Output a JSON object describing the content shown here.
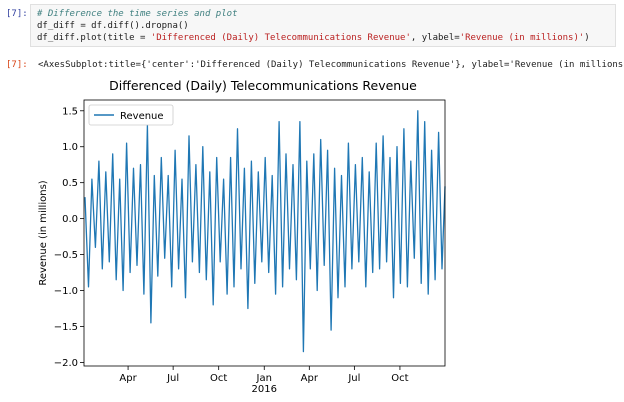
{
  "notebook": {
    "in_prompt": "[7]:",
    "out_prompt": "[7]:",
    "code_lines": [
      {
        "parts": [
          {
            "cls": "comment",
            "text": "# Difference the time series and plot"
          }
        ]
      },
      {
        "parts": [
          {
            "cls": "",
            "text": "df_diff = df.diff().dropna()"
          }
        ]
      },
      {
        "parts": [
          {
            "cls": "",
            "text": "df_diff.plot(title = "
          },
          {
            "cls": "str",
            "text": "'Differenced (Daily) Telecommunications Revenue'"
          },
          {
            "cls": "",
            "text": ", ylabel="
          },
          {
            "cls": "str",
            "text": "'Revenue (in millions)'"
          },
          {
            "cls": "",
            "text": ")"
          }
        ]
      }
    ],
    "output_text": "<AxesSubplot:title={'center':'Differenced (Daily) Telecommunications Revenue'}, ylabel='Revenue (in millions)'>"
  },
  "chart_data": {
    "type": "line",
    "title": "Differenced (Daily) Telecommunications Revenue",
    "xlabel": "",
    "ylabel": "Revenue (in millions)",
    "ylim": [
      -2.05,
      1.65
    ],
    "yticks": [
      1.5,
      1.0,
      0.5,
      0.0,
      -0.5,
      -1.0,
      -1.5,
      -2.0
    ],
    "ytick_labels": [
      "1.5",
      "1.0",
      "0.5",
      "0.0",
      "−0.5",
      "−1.0",
      "−1.5",
      "−2.0"
    ],
    "xlim": [
      "2015-01-02",
      "2016-12-31"
    ],
    "xticks": [
      {
        "date": "2015-04-01",
        "label": "Apr"
      },
      {
        "date": "2015-07-01",
        "label": "Jul"
      },
      {
        "date": "2015-10-01",
        "label": "Oct"
      },
      {
        "date": "2016-01-01",
        "label": "Jan"
      },
      {
        "date": "2016-04-01",
        "label": "Apr"
      },
      {
        "date": "2016-07-01",
        "label": "Jul"
      },
      {
        "date": "2016-10-01",
        "label": "Oct"
      }
    ],
    "year_label": "2016",
    "legend": {
      "position": "top-left",
      "entries": [
        "Revenue"
      ]
    },
    "grid": false,
    "series_color": "#1f77b4",
    "series": [
      {
        "name": "Revenue",
        "points": [
          [
            "2015-01-04",
            0.3
          ],
          [
            "2015-01-11",
            -0.95
          ],
          [
            "2015-01-18",
            0.55
          ],
          [
            "2015-01-25",
            -0.4
          ],
          [
            "2015-02-01",
            0.8
          ],
          [
            "2015-02-08",
            -0.7
          ],
          [
            "2015-02-15",
            0.65
          ],
          [
            "2015-02-22",
            -0.6
          ],
          [
            "2015-03-01",
            0.9
          ],
          [
            "2015-03-08",
            -0.85
          ],
          [
            "2015-03-15",
            0.55
          ],
          [
            "2015-03-22",
            -1.0
          ],
          [
            "2015-03-29",
            1.05
          ],
          [
            "2015-04-05",
            -0.75
          ],
          [
            "2015-04-12",
            0.7
          ],
          [
            "2015-04-19",
            -0.65
          ],
          [
            "2015-04-26",
            0.75
          ],
          [
            "2015-05-03",
            -1.05
          ],
          [
            "2015-05-10",
            1.3
          ],
          [
            "2015-05-17",
            -1.45
          ],
          [
            "2015-05-24",
            0.6
          ],
          [
            "2015-05-31",
            -0.8
          ],
          [
            "2015-06-07",
            0.85
          ],
          [
            "2015-06-14",
            -0.55
          ],
          [
            "2015-06-21",
            0.6
          ],
          [
            "2015-06-28",
            -0.95
          ],
          [
            "2015-07-05",
            0.95
          ],
          [
            "2015-07-12",
            -0.7
          ],
          [
            "2015-07-19",
            0.55
          ],
          [
            "2015-07-26",
            -1.1
          ],
          [
            "2015-08-02",
            1.15
          ],
          [
            "2015-08-09",
            -0.6
          ],
          [
            "2015-08-16",
            0.75
          ],
          [
            "2015-08-23",
            -0.75
          ],
          [
            "2015-08-30",
            1.0
          ],
          [
            "2015-09-06",
            -0.85
          ],
          [
            "2015-09-13",
            0.65
          ],
          [
            "2015-09-20",
            -1.2
          ],
          [
            "2015-09-27",
            0.85
          ],
          [
            "2015-10-04",
            -0.6
          ],
          [
            "2015-10-11",
            0.55
          ],
          [
            "2015-10-18",
            -1.05
          ],
          [
            "2015-10-25",
            0.85
          ],
          [
            "2015-11-01",
            -0.95
          ],
          [
            "2015-11-08",
            1.25
          ],
          [
            "2015-11-15",
            -0.7
          ],
          [
            "2015-11-22",
            0.7
          ],
          [
            "2015-11-29",
            -1.25
          ],
          [
            "2015-12-06",
            0.8
          ],
          [
            "2015-12-13",
            -0.9
          ],
          [
            "2015-12-20",
            0.65
          ],
          [
            "2015-12-27",
            -0.6
          ],
          [
            "2016-01-03",
            0.85
          ],
          [
            "2016-01-10",
            -0.75
          ],
          [
            "2016-01-17",
            0.6
          ],
          [
            "2016-01-24",
            -1.05
          ],
          [
            "2016-01-31",
            1.35
          ],
          [
            "2016-02-07",
            -0.95
          ],
          [
            "2016-02-14",
            0.9
          ],
          [
            "2016-02-21",
            -0.7
          ],
          [
            "2016-02-28",
            0.75
          ],
          [
            "2016-03-06",
            -0.85
          ],
          [
            "2016-03-13",
            1.35
          ],
          [
            "2016-03-20",
            -1.85
          ],
          [
            "2016-03-27",
            0.8
          ],
          [
            "2016-04-03",
            -0.7
          ],
          [
            "2016-04-10",
            0.9
          ],
          [
            "2016-04-17",
            -1.0
          ],
          [
            "2016-04-24",
            1.1
          ],
          [
            "2016-05-01",
            -0.65
          ],
          [
            "2016-05-08",
            0.95
          ],
          [
            "2016-05-15",
            -1.55
          ],
          [
            "2016-05-22",
            0.7
          ],
          [
            "2016-05-29",
            -1.1
          ],
          [
            "2016-06-05",
            0.6
          ],
          [
            "2016-06-12",
            -0.95
          ],
          [
            "2016-06-19",
            1.05
          ],
          [
            "2016-06-26",
            -0.7
          ],
          [
            "2016-07-03",
            0.75
          ],
          [
            "2016-07-10",
            -0.6
          ],
          [
            "2016-07-17",
            0.85
          ],
          [
            "2016-07-24",
            -0.95
          ],
          [
            "2016-07-31",
            0.65
          ],
          [
            "2016-08-07",
            -0.75
          ],
          [
            "2016-08-14",
            1.05
          ],
          [
            "2016-08-21",
            -0.7
          ],
          [
            "2016-08-28",
            1.15
          ],
          [
            "2016-09-04",
            -0.6
          ],
          [
            "2016-09-11",
            0.85
          ],
          [
            "2016-09-18",
            -1.1
          ],
          [
            "2016-09-25",
            1.0
          ],
          [
            "2016-10-02",
            -0.9
          ],
          [
            "2016-10-09",
            1.25
          ],
          [
            "2016-10-16",
            -0.95
          ],
          [
            "2016-10-23",
            0.8
          ],
          [
            "2016-10-30",
            -0.55
          ],
          [
            "2016-11-06",
            1.5
          ],
          [
            "2016-11-13",
            -0.9
          ],
          [
            "2016-11-20",
            1.35
          ],
          [
            "2016-11-27",
            -1.05
          ],
          [
            "2016-12-04",
            0.95
          ],
          [
            "2016-12-11",
            -0.85
          ],
          [
            "2016-12-18",
            1.2
          ],
          [
            "2016-12-25",
            -0.7
          ],
          [
            "2016-12-31",
            0.45
          ]
        ]
      }
    ]
  }
}
